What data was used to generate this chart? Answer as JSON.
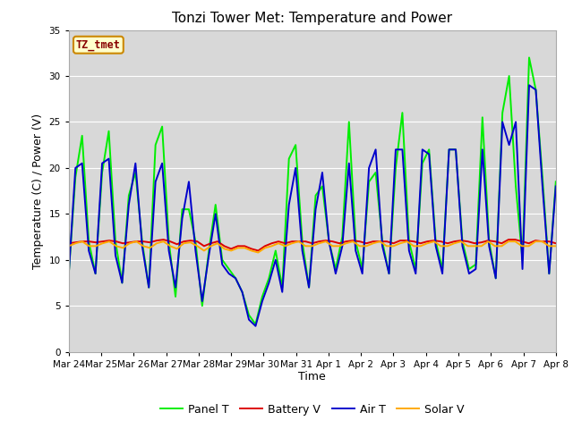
{
  "title": "Tonzi Tower Met: Temperature and Power",
  "xlabel": "Time",
  "ylabel": "Temperature (C) / Power (V)",
  "ylim": [
    0,
    35
  ],
  "fig_bg_color": "#ffffff",
  "plot_bg_color": "#d8d8d8",
  "annotation_text": "TZ_tmet",
  "annotation_bg": "#ffffcc",
  "annotation_border": "#cc8800",
  "annotation_text_color": "#880000",
  "legend_entries": [
    "Panel T",
    "Battery V",
    "Air T",
    "Solar V"
  ],
  "line_colors": [
    "#00ee00",
    "#dd0000",
    "#0000cc",
    "#ffaa00"
  ],
  "line_width": 1.4,
  "x_tick_labels": [
    "Mar 24",
    "Mar 25",
    "Mar 26",
    "Mar 27",
    "Mar 28",
    "Mar 29",
    "Mar 30",
    "Mar 31",
    "Apr 1",
    "Apr 2",
    "Apr 3",
    "Apr 4",
    "Apr 5",
    "Apr 6",
    "Apr 7",
    "Apr 8"
  ],
  "panel_T": [
    8.5,
    19,
    23.5,
    12,
    8.5,
    19.5,
    24,
    12,
    7.5,
    17,
    19.5,
    12,
    7,
    22.5,
    24.5,
    12,
    6,
    15.5,
    15.5,
    12,
    5,
    11,
    16,
    10,
    9,
    8,
    6.5,
    4,
    3,
    6,
    8,
    11,
    7,
    21,
    22.5,
    12,
    7,
    17,
    18,
    12,
    9,
    12.5,
    25,
    12,
    9,
    18.5,
    19.5,
    12,
    8.5,
    20,
    26,
    12,
    9,
    20.5,
    22,
    12,
    9,
    22,
    22,
    12,
    9,
    9.5,
    25.5,
    12,
    8,
    26,
    30,
    18,
    10,
    32,
    28.5,
    19,
    8.5,
    18.5
  ],
  "battery_V": [
    11.8,
    11.9,
    12.0,
    12.0,
    11.9,
    12.0,
    12.1,
    12.0,
    11.8,
    11.9,
    12.0,
    12.0,
    11.9,
    12.1,
    12.2,
    12.0,
    11.7,
    12.0,
    12.1,
    12.0,
    11.5,
    11.8,
    12.0,
    11.5,
    11.2,
    11.5,
    11.5,
    11.2,
    11.0,
    11.5,
    11.8,
    12.0,
    11.8,
    12.0,
    12.0,
    12.0,
    11.8,
    12.0,
    12.1,
    12.0,
    11.8,
    12.0,
    12.1,
    12.0,
    11.8,
    12.0,
    12.0,
    12.0,
    11.8,
    12.1,
    12.1,
    12.0,
    11.8,
    12.0,
    12.1,
    12.0,
    11.8,
    12.0,
    12.1,
    12.0,
    11.8,
    11.9,
    12.1,
    12.0,
    11.8,
    12.2,
    12.2,
    12.0,
    11.8,
    12.1,
    12.0,
    12.0,
    11.8
  ],
  "air_T": [
    8.5,
    20,
    20.5,
    11,
    8.5,
    20.5,
    21,
    10.5,
    7.5,
    16,
    20.5,
    11.5,
    7,
    18.5,
    20.5,
    11,
    7,
    14.5,
    18.5,
    11,
    5.5,
    10.5,
    15,
    9.5,
    8.5,
    8,
    6.5,
    3.5,
    2.8,
    5.5,
    7.5,
    10,
    6.5,
    16,
    20,
    11,
    7,
    15.5,
    19.5,
    12,
    8.5,
    11.5,
    20.5,
    11,
    8.5,
    20,
    22,
    11.5,
    8.5,
    22,
    22,
    11,
    8.5,
    22,
    21.5,
    11.5,
    8.5,
    22,
    22,
    11.5,
    8.5,
    9,
    22,
    11.5,
    8,
    25,
    22.5,
    25,
    9,
    29,
    28.5,
    18,
    8.5,
    18
  ],
  "solar_V": [
    11.5,
    11.8,
    12.0,
    11.5,
    11.5,
    11.8,
    12.0,
    11.5,
    11.3,
    11.8,
    12.0,
    11.5,
    11.3,
    11.8,
    12.0,
    11.5,
    11.2,
    11.8,
    11.9,
    11.5,
    11.0,
    11.5,
    11.8,
    11.2,
    11.0,
    11.3,
    11.3,
    11.0,
    10.8,
    11.3,
    11.5,
    11.8,
    11.5,
    11.8,
    12.0,
    11.5,
    11.5,
    11.8,
    12.0,
    11.5,
    11.5,
    11.8,
    12.0,
    11.5,
    11.5,
    11.8,
    12.0,
    11.5,
    11.5,
    11.8,
    12.0,
    11.5,
    11.5,
    11.8,
    12.0,
    11.5,
    11.5,
    11.8,
    12.0,
    11.5,
    11.5,
    11.5,
    12.0,
    11.5,
    11.5,
    12.0,
    12.0,
    11.5,
    11.5,
    12.0,
    12.0,
    11.5,
    11.5
  ],
  "title_fontsize": 11,
  "axis_label_fontsize": 9,
  "tick_fontsize": 7.5,
  "legend_fontsize": 9
}
